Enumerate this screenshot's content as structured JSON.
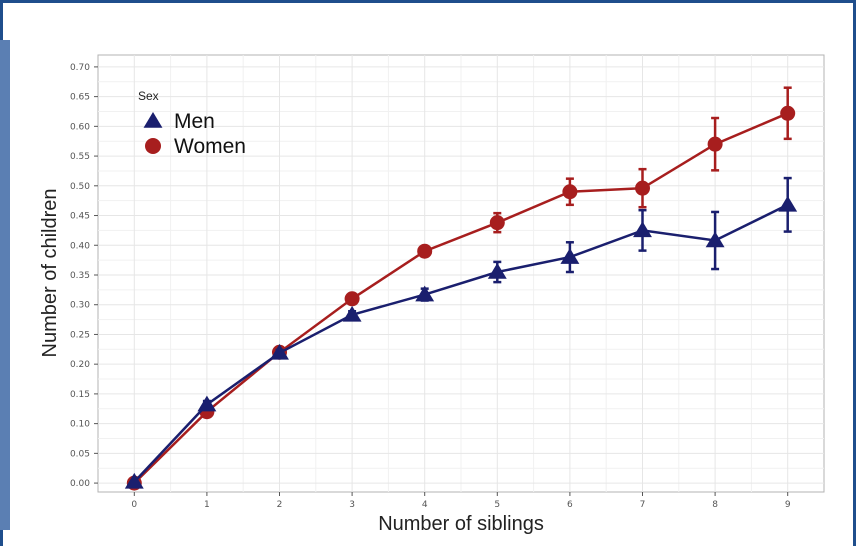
{
  "colors": {
    "men": "#1a1f6e",
    "women": "#a71e1e",
    "grid": "#e6e6e6",
    "panel_border": "#b3b3b3"
  },
  "chart_data": {
    "type": "line",
    "xlabel": "Number of siblings",
    "ylabel": "Number of children",
    "x": [
      0,
      1,
      2,
      3,
      4,
      5,
      6,
      7,
      8,
      9
    ],
    "xlim": [
      -0.5,
      9.5
    ],
    "ylim": [
      -0.015,
      0.72
    ],
    "x_ticks": [
      "0",
      "1",
      "2",
      "3",
      "4",
      "5",
      "6",
      "7",
      "8",
      "9"
    ],
    "y_ticks": [
      "0.00",
      "0.05",
      "0.10",
      "0.15",
      "0.20",
      "0.25",
      "0.30",
      "0.35",
      "0.40",
      "0.45",
      "0.50",
      "0.55",
      "0.60",
      "0.65",
      "0.70"
    ],
    "grid": true,
    "legend": {
      "title": "Sex",
      "position": "top-left"
    },
    "series": [
      {
        "name": "Men",
        "marker": "triangle",
        "values": [
          0.002,
          0.132,
          0.219,
          0.283,
          0.317,
          0.355,
          0.38,
          0.425,
          0.408,
          0.468
        ],
        "err": [
          0.003,
          0.006,
          0.005,
          0.006,
          0.01,
          0.017,
          0.025,
          0.034,
          0.048,
          0.045
        ]
      },
      {
        "name": "Women",
        "marker": "circle",
        "values": [
          0.0,
          0.12,
          0.22,
          0.31,
          0.39,
          0.438,
          0.49,
          0.496,
          0.57,
          0.622
        ],
        "err": [
          0.003,
          0.005,
          0.005,
          0.006,
          0.008,
          0.016,
          0.022,
          0.032,
          0.044,
          0.043
        ]
      }
    ]
  }
}
